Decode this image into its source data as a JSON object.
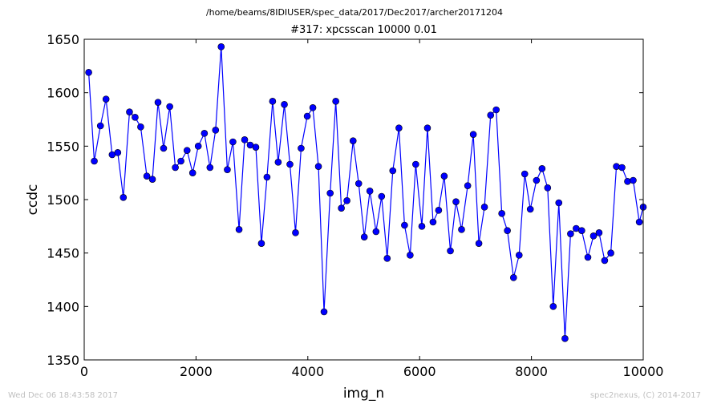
{
  "figure": {
    "suptitle": "/home/beams/8IDIUSER/spec_data/2017/Dec2017/archer20171204",
    "footer_left": "Wed Dec 06 18:43:58 2017",
    "footer_right": "spec2nexus, (C) 2014-2017"
  },
  "chart_data": {
    "type": "line",
    "title": "#317: xpcsscan 10000 0.01",
    "xlabel": "img_n",
    "ylabel": "ccdc",
    "xlim": [
      0,
      10000
    ],
    "ylim": [
      1350,
      1650
    ],
    "xticks": [
      0,
      2000,
      4000,
      6000,
      8000,
      10000
    ],
    "yticks": [
      1350,
      1400,
      1450,
      1500,
      1550,
      1600,
      1650
    ],
    "grid": false,
    "legend": "none",
    "series": [
      {
        "color": "#0000ff",
        "marker": "circle",
        "points": [
          [
            80,
            1619
          ],
          [
            180,
            1536
          ],
          [
            290,
            1569
          ],
          [
            390,
            1594
          ],
          [
            500,
            1542
          ],
          [
            600,
            1544
          ],
          [
            700,
            1502
          ],
          [
            810,
            1582
          ],
          [
            910,
            1577
          ],
          [
            1010,
            1568
          ],
          [
            1120,
            1522
          ],
          [
            1220,
            1519
          ],
          [
            1320,
            1591
          ],
          [
            1420,
            1548
          ],
          [
            1530,
            1587
          ],
          [
            1630,
            1530
          ],
          [
            1730,
            1536
          ],
          [
            1840,
            1546
          ],
          [
            1940,
            1525
          ],
          [
            2040,
            1550
          ],
          [
            2150,
            1562
          ],
          [
            2250,
            1530
          ],
          [
            2350,
            1565
          ],
          [
            2450,
            1643
          ],
          [
            2560,
            1528
          ],
          [
            2660,
            1554
          ],
          [
            2770,
            1472
          ],
          [
            2870,
            1556
          ],
          [
            2970,
            1551
          ],
          [
            3070,
            1549
          ],
          [
            3170,
            1459
          ],
          [
            3270,
            1521
          ],
          [
            3370,
            1592
          ],
          [
            3470,
            1535
          ],
          [
            3580,
            1589
          ],
          [
            3680,
            1533
          ],
          [
            3780,
            1469
          ],
          [
            3880,
            1548
          ],
          [
            3990,
            1578
          ],
          [
            4090,
            1586
          ],
          [
            4190,
            1531
          ],
          [
            4290,
            1395
          ],
          [
            4400,
            1506
          ],
          [
            4500,
            1592
          ],
          [
            4600,
            1492
          ],
          [
            4700,
            1499
          ],
          [
            4810,
            1555
          ],
          [
            4910,
            1515
          ],
          [
            5010,
            1465
          ],
          [
            5110,
            1508
          ],
          [
            5220,
            1470
          ],
          [
            5320,
            1503
          ],
          [
            5420,
            1445
          ],
          [
            5520,
            1527
          ],
          [
            5630,
            1567
          ],
          [
            5730,
            1476
          ],
          [
            5830,
            1448
          ],
          [
            5930,
            1533
          ],
          [
            6040,
            1475
          ],
          [
            6140,
            1567
          ],
          [
            6240,
            1479
          ],
          [
            6340,
            1490
          ],
          [
            6440,
            1522
          ],
          [
            6550,
            1452
          ],
          [
            6650,
            1498
          ],
          [
            6750,
            1472
          ],
          [
            6860,
            1513
          ],
          [
            6960,
            1561
          ],
          [
            7060,
            1459
          ],
          [
            7160,
            1493
          ],
          [
            7270,
            1579
          ],
          [
            7370,
            1584
          ],
          [
            7470,
            1487
          ],
          [
            7570,
            1471
          ],
          [
            7680,
            1427
          ],
          [
            7780,
            1448
          ],
          [
            7880,
            1524
          ],
          [
            7980,
            1491
          ],
          [
            8090,
            1518
          ],
          [
            8190,
            1529
          ],
          [
            8290,
            1511
          ],
          [
            8390,
            1400
          ],
          [
            8490,
            1497
          ],
          [
            8600,
            1370
          ],
          [
            8700,
            1468
          ],
          [
            8800,
            1473
          ],
          [
            8900,
            1471
          ],
          [
            9010,
            1446
          ],
          [
            9110,
            1466
          ],
          [
            9210,
            1469
          ],
          [
            9310,
            1443
          ],
          [
            9420,
            1450
          ],
          [
            9520,
            1531
          ],
          [
            9620,
            1530
          ],
          [
            9720,
            1517
          ],
          [
            9820,
            1518
          ],
          [
            9930,
            1479
          ],
          [
            10000,
            1493
          ]
        ]
      }
    ]
  }
}
